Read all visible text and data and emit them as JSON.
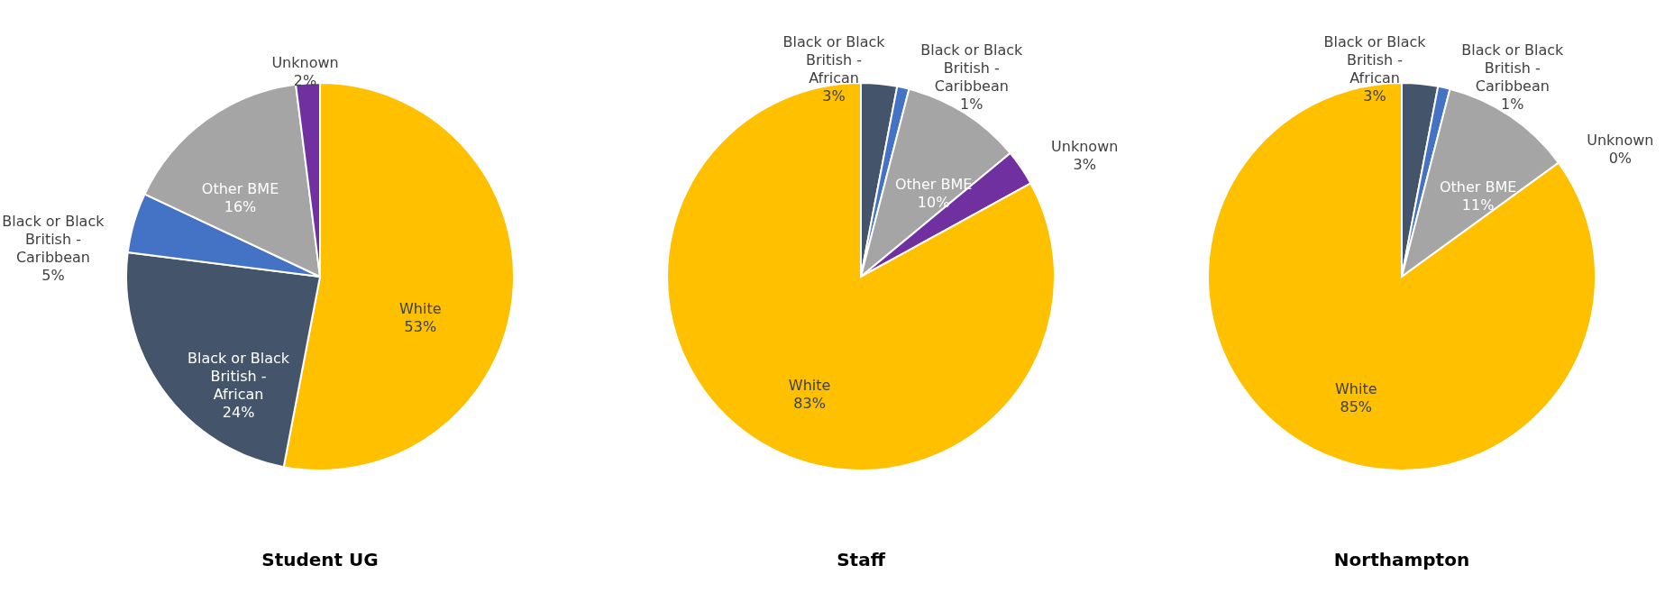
{
  "chart_data": [
    {
      "type": "pie",
      "title": "Student UG",
      "categories": [
        "White",
        "Black or Black British - African",
        "Black or Black British - Caribbean",
        "Other BME",
        "Unknown"
      ],
      "values": [
        53,
        24,
        5,
        16,
        2
      ],
      "colors": [
        "#ffc000",
        "#44546a",
        "#4472c4",
        "#a5a5a5",
        "#7030a0"
      ],
      "value_labels": [
        "53%",
        "24%",
        "5%",
        "16%",
        "2%"
      ]
    },
    {
      "type": "pie",
      "title": "Staff",
      "categories": [
        "Black or Black British - African",
        "Black or Black British - Caribbean",
        "Other BME",
        "Unknown",
        "White"
      ],
      "values": [
        3,
        1,
        10,
        3,
        83
      ],
      "colors": [
        "#44546a",
        "#4472c4",
        "#a5a5a5",
        "#7030a0",
        "#ffc000"
      ],
      "value_labels": [
        "3%",
        "1%",
        "10%",
        "3%",
        "83%"
      ]
    },
    {
      "type": "pie",
      "title": "Northampton",
      "categories": [
        "Black or Black British - African",
        "Black or Black British - Caribbean",
        "Other BME",
        "Unknown",
        "White"
      ],
      "values": [
        3,
        1,
        11,
        0,
        85
      ],
      "colors": [
        "#44546a",
        "#4472c4",
        "#a5a5a5",
        "#7030a0",
        "#ffc000"
      ],
      "value_labels": [
        "3%",
        "1%",
        "11%",
        "0%",
        "85%"
      ]
    }
  ]
}
